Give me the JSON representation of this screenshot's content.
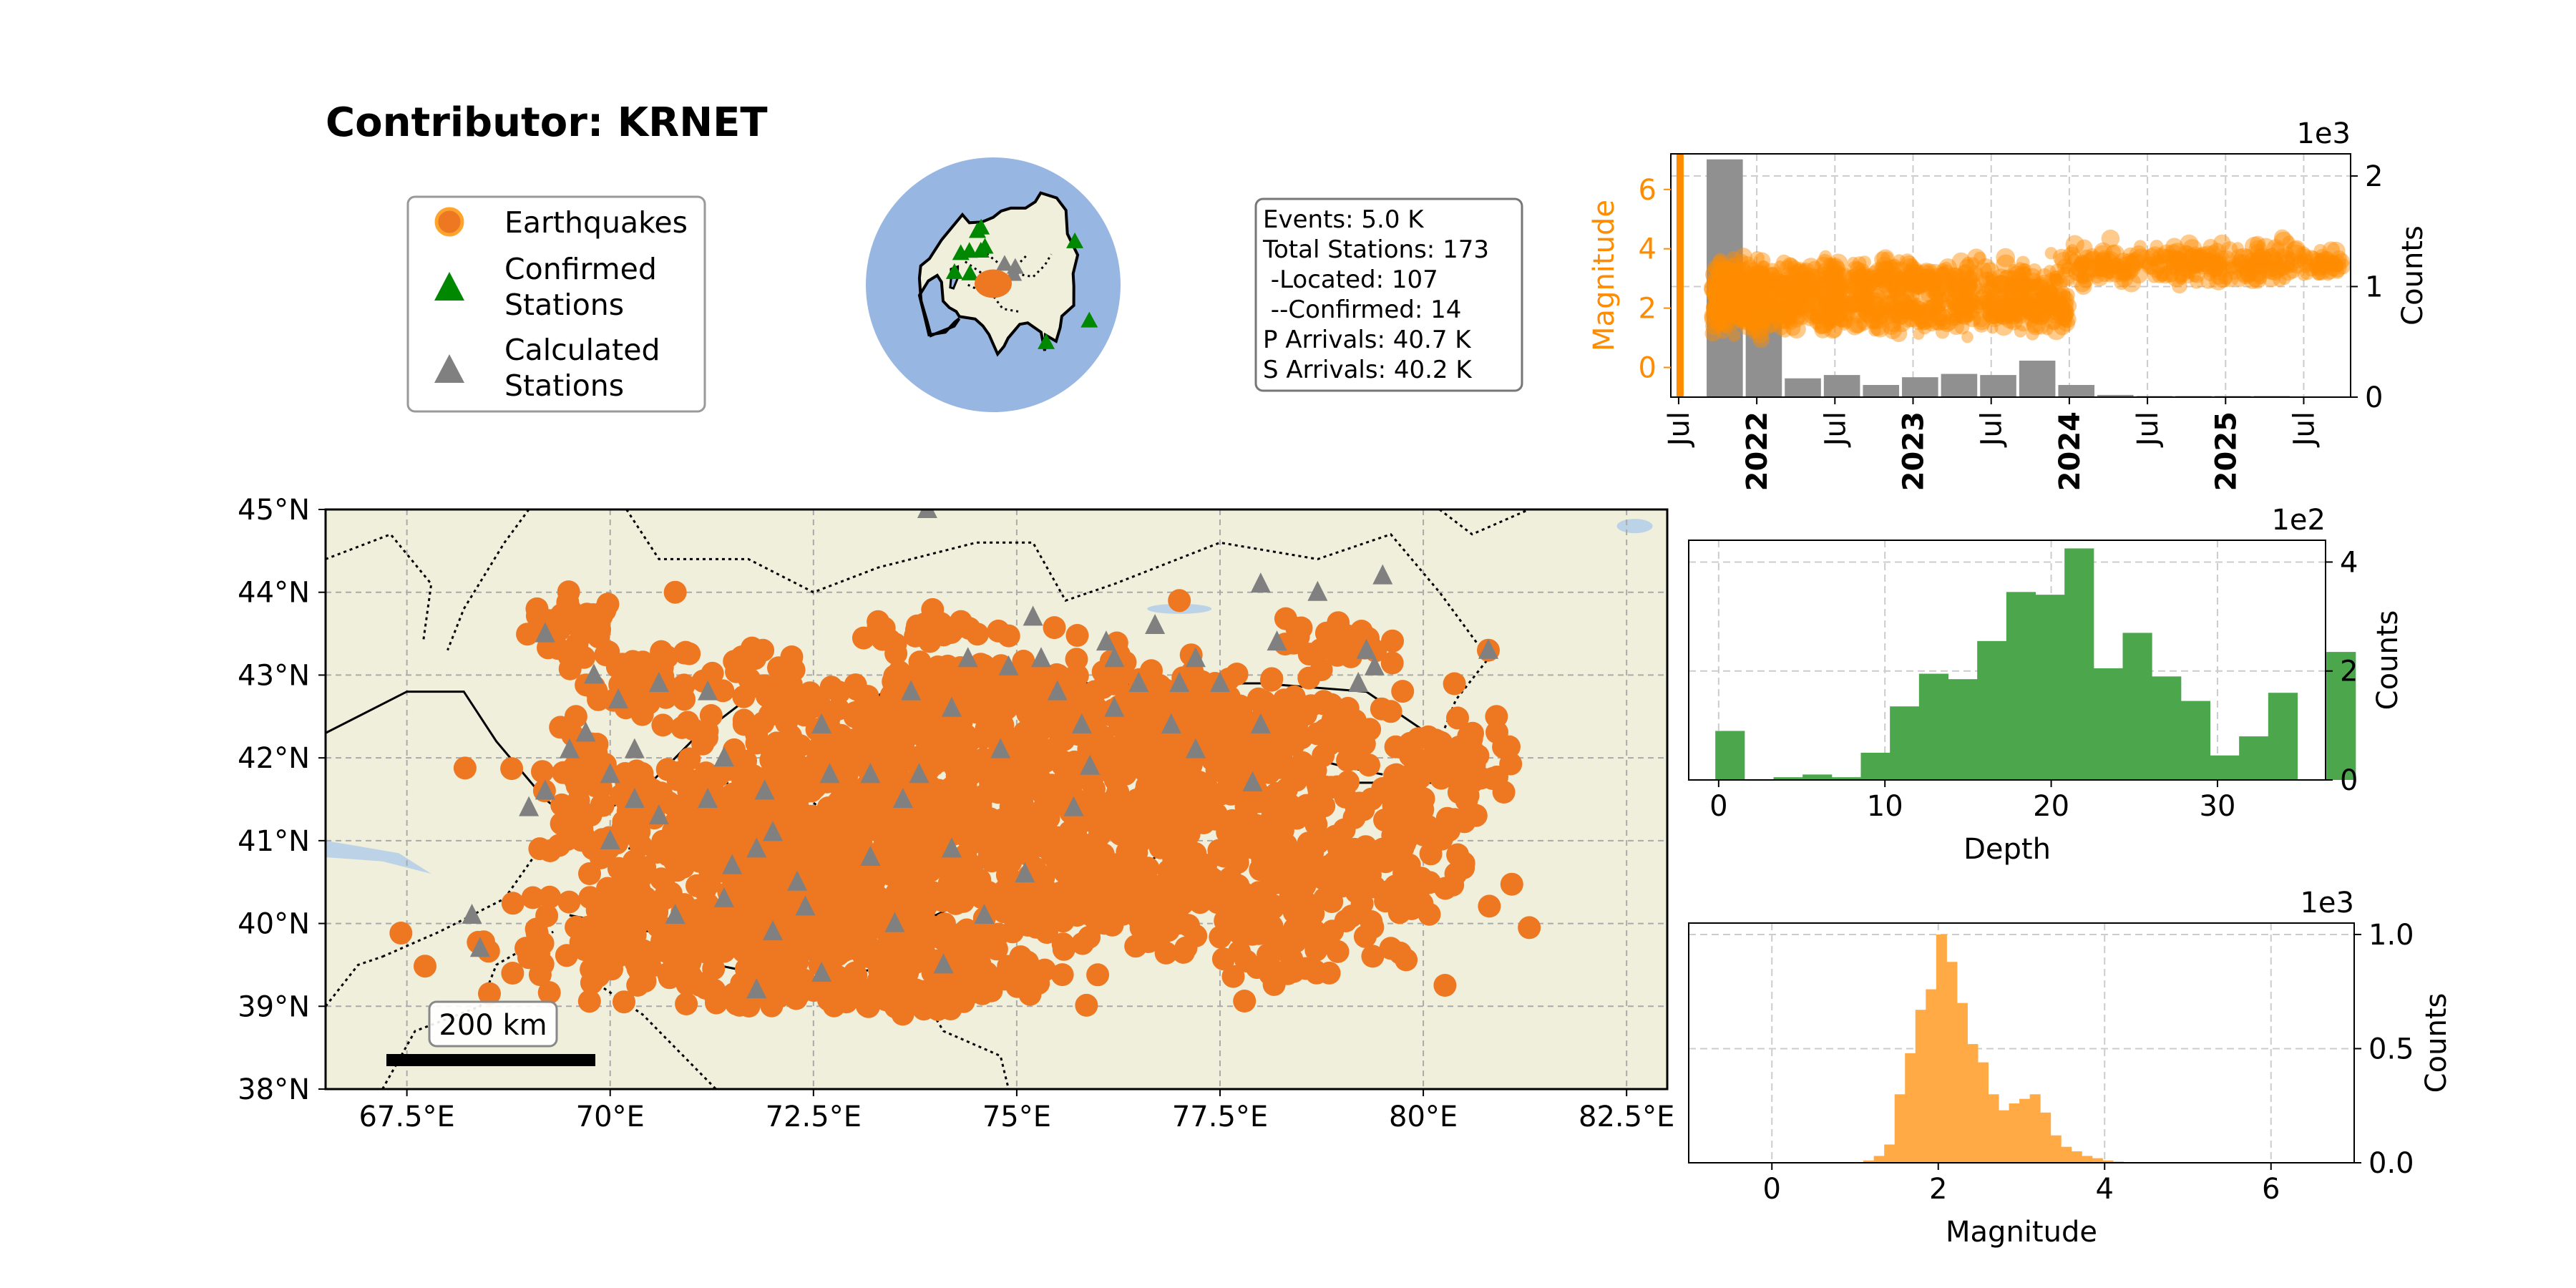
{
  "title": "Contributor: KRNET",
  "colors": {
    "earthquake": "#ee7722",
    "confirmed": "#008800",
    "calculated": "#808080",
    "land": "#efefdc",
    "ocean": "#98b6e2",
    "lake": "#bcd2e6",
    "depth_bar": "#4ca64c",
    "mag_bar": "#ffaa44",
    "time_bar": "#909090",
    "time_point": "#ff8c00"
  },
  "legend": {
    "items": [
      {
        "label_lines": [
          "Earthquakes"
        ],
        "icon": "circle-icon"
      },
      {
        "label_lines": [
          "Confirmed",
          "Stations"
        ],
        "icon": "triangle-icon"
      },
      {
        "label_lines": [
          "Calculated",
          "Stations"
        ],
        "icon": "triangle-icon"
      }
    ]
  },
  "stats": {
    "lines": [
      "Events: 5.0 K",
      "Total Stations: 173",
      " -Located: 107",
      " --Confirmed: 14",
      "P Arrivals: 40.7 K",
      "S Arrivals: 40.2 K"
    ]
  },
  "globe": {
    "center_lon": 75,
    "center_lat": 41
  },
  "chart_data": [
    {
      "type": "scatter",
      "name": "map",
      "xlim": [
        66.5,
        83
      ],
      "ylim": [
        38,
        45
      ],
      "x_ticks": [
        67.5,
        70,
        72.5,
        75,
        77.5,
        80,
        82.5
      ],
      "x_tick_labels": [
        "67.5°E",
        "70°E",
        "72.5°E",
        "75°E",
        "77.5°E",
        "80°E",
        "82.5°E"
      ],
      "y_ticks": [
        38,
        39,
        40,
        41,
        42,
        43,
        44,
        45
      ],
      "y_tick_labels": [
        "38°N",
        "39°N",
        "40°N",
        "41°N",
        "42°N",
        "43°N",
        "44°N",
        "45°N"
      ],
      "scale_bar_label": "200 km",
      "earthquake_clusters": [
        {
          "lon": 69.6,
          "lat": 43.6,
          "slon": 0.3,
          "slat": 0.2,
          "n": 30
        },
        {
          "lon": 70.4,
          "lat": 42.9,
          "slon": 0.35,
          "slat": 0.25,
          "n": 35
        },
        {
          "lon": 69.8,
          "lat": 41.5,
          "slon": 0.35,
          "slat": 0.4,
          "n": 45
        },
        {
          "lon": 71.0,
          "lat": 41.3,
          "slon": 0.8,
          "slat": 0.5,
          "n": 130
        },
        {
          "lon": 70.9,
          "lat": 39.8,
          "slon": 1.2,
          "slat": 0.35,
          "n": 200
        },
        {
          "lon": 73.0,
          "lat": 39.6,
          "slon": 1.2,
          "slat": 0.35,
          "n": 240
        },
        {
          "lon": 72.6,
          "lat": 40.8,
          "slon": 0.9,
          "slat": 0.45,
          "n": 240
        },
        {
          "lon": 73.3,
          "lat": 41.8,
          "slon": 1.2,
          "slat": 0.45,
          "n": 260
        },
        {
          "lon": 74.6,
          "lat": 42.7,
          "slon": 1.0,
          "slat": 0.3,
          "n": 200
        },
        {
          "lon": 75.2,
          "lat": 41.6,
          "slon": 1.0,
          "slat": 0.45,
          "n": 200
        },
        {
          "lon": 75.7,
          "lat": 40.4,
          "slon": 1.0,
          "slat": 0.4,
          "n": 200
        },
        {
          "lon": 77.6,
          "lat": 42.5,
          "slon": 0.9,
          "slat": 0.3,
          "n": 160
        },
        {
          "lon": 77.9,
          "lat": 41.5,
          "slon": 1.0,
          "slat": 0.4,
          "n": 160
        },
        {
          "lon": 78.0,
          "lat": 40.4,
          "slon": 1.0,
          "slat": 0.45,
          "n": 150
        },
        {
          "lon": 80.2,
          "lat": 42.0,
          "slon": 0.5,
          "slat": 0.25,
          "n": 50
        },
        {
          "lon": 79.9,
          "lat": 40.8,
          "slon": 0.5,
          "slat": 0.4,
          "n": 40
        },
        {
          "lon": 78.9,
          "lat": 43.4,
          "slon": 0.3,
          "slat": 0.15,
          "n": 25
        },
        {
          "lon": 73.9,
          "lat": 43.6,
          "slon": 0.4,
          "slat": 0.15,
          "n": 25
        },
        {
          "lon": 71.8,
          "lat": 43.0,
          "slon": 0.3,
          "slat": 0.15,
          "n": 20
        },
        {
          "lon": 73.5,
          "lat": 39.2,
          "slon": 1.0,
          "slat": 0.1,
          "n": 50
        },
        {
          "lon": 78.5,
          "lat": 39.6,
          "slon": 0.5,
          "slat": 0.15,
          "n": 20
        },
        {
          "lon": 72.0,
          "lat": 41.1,
          "slon": 0.3,
          "slat": 0.15,
          "n": 30
        }
      ],
      "earthquake_points": [
        {
          "lon": 70.8,
          "lat": 44.0
        },
        {
          "lon": 69.1,
          "lat": 43.8
        },
        {
          "lon": 77.0,
          "lat": 43.9
        },
        {
          "lon": 80.9,
          "lat": 42.5
        },
        {
          "lon": 80.8,
          "lat": 43.3
        },
        {
          "lon": 68.8,
          "lat": 39.4
        },
        {
          "lon": 80.6,
          "lat": 42.1
        },
        {
          "lon": 79.6,
          "lat": 39.7
        },
        {
          "lon": 79.7,
          "lat": 40.3
        },
        {
          "lon": 80.4,
          "lat": 40.6
        }
      ],
      "calculated_stations": [
        [
          73.9,
          45.0
        ],
        [
          69.7,
          42.3
        ],
        [
          69.5,
          42.1
        ],
        [
          70.3,
          42.1
        ],
        [
          70.0,
          41.8
        ],
        [
          69.0,
          41.4
        ],
        [
          69.2,
          41.6
        ],
        [
          68.3,
          40.1
        ],
        [
          68.4,
          39.7
        ],
        [
          69.2,
          43.5
        ],
        [
          69.8,
          43.0
        ],
        [
          70.6,
          42.9
        ],
        [
          71.2,
          42.8
        ],
        [
          70.1,
          42.7
        ],
        [
          74.9,
          43.1
        ],
        [
          74.4,
          43.2
        ],
        [
          73.7,
          42.8
        ],
        [
          74.2,
          42.6
        ],
        [
          73.2,
          41.8
        ],
        [
          73.6,
          41.5
        ],
        [
          72.6,
          42.4
        ],
        [
          71.4,
          42.0
        ],
        [
          71.2,
          41.5
        ],
        [
          70.6,
          41.3
        ],
        [
          72.0,
          41.1
        ],
        [
          70.3,
          41.5
        ],
        [
          70.0,
          41.0
        ],
        [
          70.8,
          40.1
        ],
        [
          71.4,
          40.3
        ],
        [
          72.0,
          39.9
        ],
        [
          72.3,
          40.5
        ],
        [
          73.2,
          40.8
        ],
        [
          73.5,
          40.0
        ],
        [
          74.6,
          40.1
        ],
        [
          75.1,
          40.6
        ],
        [
          75.7,
          41.4
        ],
        [
          75.8,
          42.4
        ],
        [
          76.2,
          42.6
        ],
        [
          76.9,
          42.4
        ],
        [
          77.0,
          42.9
        ],
        [
          77.5,
          42.9
        ],
        [
          77.2,
          43.2
        ],
        [
          76.5,
          42.9
        ],
        [
          76.2,
          43.2
        ],
        [
          75.5,
          42.8
        ],
        [
          75.3,
          43.2
        ],
        [
          76.1,
          43.4
        ],
        [
          76.7,
          43.6
        ],
        [
          75.2,
          43.7
        ],
        [
          78.0,
          44.1
        ],
        [
          78.7,
          44.0
        ],
        [
          78.2,
          43.4
        ],
        [
          79.5,
          44.2
        ],
        [
          79.3,
          43.3
        ],
        [
          79.4,
          43.1
        ],
        [
          80.8,
          43.3
        ],
        [
          79.2,
          42.9
        ],
        [
          78.0,
          42.4
        ],
        [
          77.2,
          42.1
        ],
        [
          77.9,
          41.7
        ],
        [
          72.7,
          41.8
        ],
        [
          73.8,
          41.8
        ],
        [
          75.9,
          41.9
        ],
        [
          74.8,
          42.1
        ],
        [
          74.1,
          39.5
        ],
        [
          72.6,
          39.4
        ],
        [
          71.8,
          39.2
        ],
        [
          72.4,
          40.2
        ],
        [
          71.5,
          40.7
        ],
        [
          71.9,
          41.6
        ],
        [
          71.8,
          40.9
        ],
        [
          74.2,
          40.9
        ]
      ],
      "confirmed_stations": []
    },
    {
      "type": "bar",
      "name": "time-histogram",
      "x_tick_labels": [
        "Jul",
        "2022",
        "Jul",
        "2023",
        "Jul",
        "2024",
        "Jul",
        "2025",
        "Jul"
      ],
      "x_tick_bold": [
        false,
        true,
        false,
        true,
        false,
        true,
        false,
        true,
        false
      ],
      "x_tick_years": [
        2021.5,
        2022.0,
        2022.5,
        2023.0,
        2023.5,
        2024.0,
        2024.5,
        2025.0,
        2025.5
      ],
      "xlim": [
        2021.45,
        2025.8
      ],
      "bins": [
        {
          "start": 2021.67,
          "end": 2021.92,
          "count": 2150
        },
        {
          "start": 2021.92,
          "end": 2022.17,
          "count": 800
        },
        {
          "start": 2022.17,
          "end": 2022.42,
          "count": 170
        },
        {
          "start": 2022.42,
          "end": 2022.67,
          "count": 200
        },
        {
          "start": 2022.67,
          "end": 2022.92,
          "count": 110
        },
        {
          "start": 2022.92,
          "end": 2023.17,
          "count": 180
        },
        {
          "start": 2023.17,
          "end": 2023.42,
          "count": 210
        },
        {
          "start": 2023.42,
          "end": 2023.67,
          "count": 200
        },
        {
          "start": 2023.67,
          "end": 2023.92,
          "count": 330
        },
        {
          "start": 2023.92,
          "end": 2024.17,
          "count": 110
        },
        {
          "start": 2024.17,
          "end": 2024.42,
          "count": 20
        },
        {
          "start": 2024.42,
          "end": 2024.67,
          "count": 10
        },
        {
          "start": 2024.67,
          "end": 2024.92,
          "count": 10
        },
        {
          "start": 2024.92,
          "end": 2025.17,
          "count": 10
        },
        {
          "start": 2025.17,
          "end": 2025.42,
          "count": 10
        },
        {
          "start": 2025.42,
          "end": 2025.67,
          "count": 5
        }
      ],
      "right_axis": {
        "label": "Counts",
        "ylim": [
          0,
          2.2
        ],
        "ticks": [
          0,
          1,
          2
        ],
        "tick_labels": [
          "0",
          "1",
          "2"
        ],
        "multiplier": "1e3"
      },
      "left_axis": {
        "label": "Magnitude",
        "ylim": [
          -1,
          7.2
        ],
        "ticks": [
          0,
          2,
          4,
          6
        ],
        "tick_labels": [
          "0",
          "2",
          "4",
          "6"
        ]
      },
      "magnitude_bands": [
        {
          "start": 2021.72,
          "end": 2024.0,
          "mean": 2.9,
          "spread": 0.35,
          "n": 520
        },
        {
          "start": 2021.72,
          "end": 2024.0,
          "mean": 1.9,
          "spread": 0.3,
          "n": 520
        },
        {
          "start": 2024.0,
          "end": 2025.75,
          "mean": 3.5,
          "spread": 0.3,
          "n": 320
        },
        {
          "start": 2021.72,
          "end": 2022.05,
          "mean": 2.4,
          "spread": 0.5,
          "n": 200
        }
      ]
    },
    {
      "type": "bar",
      "name": "depth-histogram",
      "xlabel": "Depth",
      "ylabel": "Counts",
      "multiplier": "1e2",
      "xlim": [
        -1.8,
        36.5
      ],
      "ylim": [
        0,
        4.4
      ],
      "x_ticks": [
        0,
        10,
        20,
        30
      ],
      "x_tick_labels": [
        "0",
        "10",
        "20",
        "30"
      ],
      "y_ticks": [
        0,
        2,
        4
      ],
      "y_tick_labels": [
        "0",
        "2",
        "4"
      ],
      "bin_width": 1.75,
      "bin_start": -0.2,
      "values": [
        0.9,
        0,
        0.05,
        0.1,
        0.05,
        0.5,
        1.35,
        1.95,
        1.85,
        2.55,
        3.45,
        3.4,
        4.25,
        2.05,
        2.7,
        1.9,
        1.45,
        0.45,
        0.8,
        1.6,
        0,
        2.35
      ]
    },
    {
      "type": "bar",
      "name": "magnitude-histogram",
      "xlabel": "Magnitude",
      "ylabel": "Counts",
      "multiplier": "1e3",
      "xlim": [
        -1,
        7
      ],
      "ylim": [
        0,
        1.05
      ],
      "x_ticks": [
        0,
        2,
        4,
        6
      ],
      "x_tick_labels": [
        "0",
        "2",
        "4",
        "6"
      ],
      "y_ticks": [
        0,
        0.5,
        1.0
      ],
      "y_tick_labels": [
        "0.0",
        "0.5",
        "1.0"
      ],
      "bin_width": 0.125,
      "bin_start": 1.1,
      "values": [
        0.01,
        0.03,
        0.08,
        0.3,
        0.48,
        0.67,
        0.76,
        1.0,
        0.88,
        0.7,
        0.52,
        0.44,
        0.3,
        0.23,
        0.26,
        0.28,
        0.3,
        0.22,
        0.12,
        0.07,
        0.05,
        0.03,
        0.02,
        0.01,
        0.005
      ]
    }
  ]
}
